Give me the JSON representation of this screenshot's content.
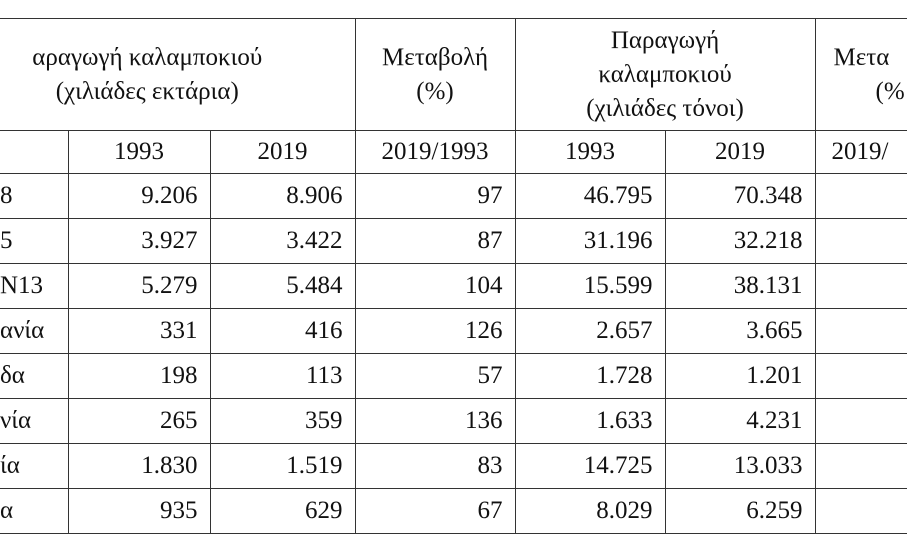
{
  "header": {
    "cells": [
      {
        "lines": [
          "αραγωγή καλαμποκιού",
          "(χιλιάδες εκτάρια)"
        ]
      },
      {
        "lines": [
          "Μεταβολή",
          "(%)"
        ]
      },
      {
        "lines": [
          "Παραγωγή",
          "καλαμποκιού",
          "(χιλιάδες τόνοι)"
        ]
      },
      {
        "lines": [
          "Μετα",
          "(%"
        ]
      }
    ]
  },
  "subheader": [
    "1993",
    "2019",
    "2019/1993",
    "1993",
    "2019",
    "2019/"
  ],
  "rows": [
    [
      "8",
      "9.206",
      "8.906",
      "97",
      "46.795",
      "70.348"
    ],
    [
      "5",
      "3.927",
      "3.422",
      "87",
      "31.196",
      "32.218"
    ],
    [
      "Ν13",
      "5.279",
      "5.484",
      "104",
      "15.599",
      "38.131"
    ],
    [
      "ανία",
      "331",
      "416",
      "126",
      "2.657",
      "3.665"
    ],
    [
      "δα",
      "198",
      "113",
      "57",
      "1.728",
      "1.201"
    ],
    [
      "νία",
      "265",
      "359",
      "136",
      "1.633",
      "4.231"
    ],
    [
      "ία",
      "1.830",
      "1.519",
      "83",
      "14.725",
      "13.033"
    ],
    [
      "α",
      "935",
      "629",
      "67",
      "8.029",
      "6.259"
    ]
  ]
}
